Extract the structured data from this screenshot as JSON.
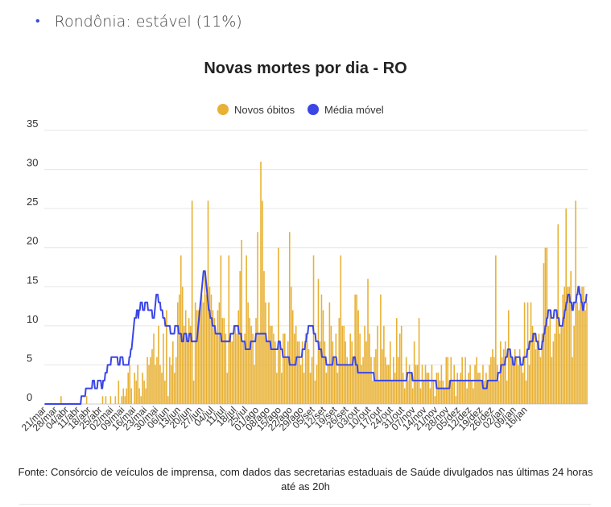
{
  "bullet": {
    "text": "Rondônia: estável (11%)"
  },
  "chart_data": {
    "type": "bar",
    "title": "Novas mortes por dia - RO",
    "legend": {
      "placement": "top-center",
      "items": [
        {
          "name": "Novos óbitos",
          "color": "#e8b134"
        },
        {
          "name": "Média móvel",
          "color": "#3a46e6"
        }
      ]
    },
    "ylim": [
      0,
      35
    ],
    "yticks": [
      0,
      5,
      10,
      15,
      20,
      25,
      30,
      35
    ],
    "xlabel": "",
    "ylabel": "",
    "x_tick_labels": [
      "21/mar",
      "28/mar",
      "04/abr",
      "11/abr",
      "18/abr",
      "25/abr",
      "02/mai",
      "09/mai",
      "16/mai",
      "23/mai",
      "30/mai",
      "06/jun",
      "13/jun",
      "20/jun",
      "27/jun",
      "04/jul",
      "11/jul",
      "18/jul",
      "25/jul",
      "01/ago",
      "08/ago",
      "15/ago",
      "22/ago",
      "29/ago",
      "05/set",
      "12/set",
      "19/set",
      "26/set",
      "03/out",
      "10/out",
      "17/out",
      "24/out",
      "31/out",
      "07/nov",
      "14/nov",
      "21/nov",
      "28/nov",
      "05/dez",
      "12/dez",
      "19/dez",
      "26/dez",
      "02/jan",
      "09/jan",
      "16/jan"
    ],
    "series": [
      {
        "name": "Novos óbitos",
        "type": "bar",
        "values": [
          0,
          0,
          0,
          0,
          0,
          0,
          0,
          0,
          0,
          0,
          1,
          0,
          0,
          0,
          0,
          0,
          0,
          0,
          0,
          0,
          0,
          0,
          0,
          0,
          0,
          0,
          1,
          0,
          0,
          0,
          0,
          0,
          0,
          0,
          0,
          0,
          1,
          0,
          1,
          0,
          0,
          1,
          0,
          0,
          1,
          0,
          3,
          0,
          1,
          2,
          1,
          2,
          4,
          5,
          2,
          0,
          4,
          3,
          5,
          2,
          1,
          4,
          3,
          2,
          6,
          5,
          6,
          7,
          9,
          5,
          6,
          10,
          5,
          4,
          9,
          3,
          12,
          1,
          6,
          5,
          8,
          4,
          6,
          13,
          14,
          19,
          15,
          10,
          12,
          8,
          11,
          10,
          26,
          3,
          13,
          12,
          12,
          13,
          14,
          13,
          17,
          14,
          26,
          15,
          14,
          12,
          11,
          9,
          12,
          13,
          19,
          11,
          11,
          9,
          4,
          19,
          9,
          8,
          9,
          10,
          9,
          12,
          17,
          21,
          8,
          9,
          19,
          13,
          11,
          10,
          9,
          5,
          11,
          22,
          9,
          31,
          26,
          17,
          13,
          8,
          13,
          10,
          10,
          9,
          8,
          4,
          20,
          8,
          4,
          9,
          9,
          6,
          8,
          22,
          15,
          12,
          9,
          10,
          8,
          8,
          5,
          8,
          4,
          9,
          8,
          7,
          4,
          6,
          19,
          3,
          5,
          16,
          8,
          14,
          12,
          8,
          4,
          5,
          13,
          10,
          8,
          6,
          9,
          4,
          11,
          19,
          10,
          10,
          8,
          6,
          5,
          9,
          8,
          5,
          14,
          14,
          12,
          9,
          5,
          6,
          10,
          8,
          16,
          9,
          6,
          3,
          6,
          7,
          10,
          3,
          14,
          7,
          10,
          6,
          5,
          5,
          8,
          3,
          6,
          4,
          11,
          6,
          9,
          10,
          4,
          2,
          6,
          3,
          5,
          4,
          2,
          8,
          5,
          5,
          11,
          2,
          5,
          3,
          5,
          4,
          4,
          2,
          5,
          3,
          1,
          4,
          4,
          3,
          5,
          3,
          2,
          6,
          6,
          3,
          6,
          3,
          5,
          1,
          4,
          3,
          4,
          6,
          3,
          6,
          2,
          4,
          5,
          3,
          2,
          5,
          6,
          4,
          4,
          3,
          5,
          3,
          4,
          3,
          5,
          6,
          7,
          6,
          19,
          5,
          3,
          8,
          6,
          7,
          8,
          3,
          12,
          7,
          6,
          5,
          7,
          6,
          5,
          7,
          5,
          4,
          13,
          3,
          13,
          5,
          13,
          10,
          9,
          7,
          8,
          9,
          6,
          9,
          18,
          20,
          20,
          10,
          12,
          6,
          8,
          9,
          12,
          23,
          9,
          10,
          14,
          15,
          25,
          15,
          15,
          17,
          6,
          10,
          26,
          13,
          12,
          13,
          15,
          15,
          12,
          13
        ]
      },
      {
        "name": "Média móvel",
        "type": "line",
        "values": [
          0,
          0,
          0,
          0,
          0,
          0,
          0,
          0,
          0,
          0,
          0,
          0,
          0,
          0,
          0,
          0,
          0,
          0,
          0,
          0,
          0,
          0,
          0,
          0,
          0,
          0,
          0,
          0,
          0,
          0,
          0,
          0,
          0,
          0,
          0,
          0,
          0,
          0,
          0,
          0,
          0,
          0,
          0,
          0,
          0,
          0,
          0,
          0,
          0,
          1,
          1,
          1,
          1,
          1,
          1,
          2,
          2,
          2,
          2,
          2,
          2,
          2,
          2,
          2,
          3,
          3,
          3,
          2,
          2,
          2,
          2,
          3,
          3,
          3,
          3,
          3,
          2,
          2,
          3,
          3,
          3,
          4,
          4,
          4,
          5,
          5,
          5,
          5,
          5,
          6,
          6,
          6,
          6,
          6,
          6,
          6,
          6,
          6,
          5,
          5,
          5,
          6,
          6,
          6,
          6,
          5,
          5,
          5,
          5,
          5,
          5,
          5,
          5,
          6,
          6,
          7,
          7,
          8,
          9,
          10,
          11,
          11,
          11,
          12,
          12,
          11,
          12,
          12,
          13,
          13,
          13,
          12,
          12,
          12,
          13,
          13,
          13,
          13,
          12,
          12,
          12,
          12,
          12,
          12,
          11,
          11,
          11,
          12,
          13,
          14,
          14,
          14,
          13,
          13,
          13,
          12,
          12,
          12,
          11,
          11,
          11,
          10,
          10,
          10,
          10,
          10,
          10,
          10,
          9,
          9,
          9,
          9,
          9,
          9,
          10,
          10,
          10,
          10,
          10,
          9,
          9,
          9,
          9,
          8,
          8,
          8,
          9,
          9,
          9,
          9,
          8,
          8,
          8,
          9,
          9,
          9,
          8,
          8,
          8,
          8,
          8,
          8,
          8,
          8,
          9,
          10,
          11,
          12,
          13,
          14,
          15,
          16,
          17,
          17,
          17,
          16,
          15,
          14,
          13,
          12,
          12,
          11,
          11,
          11,
          10,
          10,
          10,
          10,
          9,
          9,
          9,
          9,
          9,
          9,
          9,
          9,
          8,
          8,
          8,
          8,
          8,
          8,
          8,
          8,
          8,
          8,
          8,
          8,
          9,
          9,
          9,
          9,
          9,
          10,
          10,
          10,
          10,
          10,
          10,
          9,
          9,
          9,
          9,
          8,
          8,
          8,
          8,
          8,
          7,
          7,
          7,
          7,
          7,
          7,
          7,
          8,
          8,
          8,
          8,
          8,
          8,
          8,
          9,
          9,
          9,
          9,
          9,
          9,
          9,
          9,
          9,
          9,
          9,
          9,
          9,
          9,
          8,
          8,
          8,
          8,
          8,
          8,
          7,
          7,
          7,
          7,
          7,
          7,
          7,
          7,
          7,
          7,
          8,
          8,
          8,
          7,
          7,
          7,
          6,
          6,
          6,
          6,
          6,
          6,
          6,
          6,
          6,
          5,
          5,
          5,
          5,
          5,
          5,
          5,
          5,
          5,
          6,
          6,
          6,
          6,
          6,
          6,
          6,
          6,
          7,
          7,
          7,
          7,
          8,
          8,
          9,
          9,
          10,
          10,
          10,
          10,
          10,
          10,
          10,
          9,
          9,
          9,
          8,
          8,
          8,
          8,
          7,
          7,
          7,
          7,
          6,
          6,
          6,
          6,
          6,
          6,
          5,
          5,
          5,
          5,
          5,
          5,
          5,
          5,
          5,
          6,
          6,
          6,
          6,
          6,
          5,
          5,
          5,
          5,
          5,
          5,
          5,
          5,
          5,
          5,
          5,
          5,
          5,
          5,
          5,
          5,
          5,
          5,
          5,
          5,
          5,
          5,
          6,
          6,
          6,
          5,
          5,
          5,
          4,
          4,
          4,
          4,
          4,
          4,
          4,
          4,
          4,
          4,
          4,
          4,
          4,
          4,
          4,
          4,
          4,
          4,
          4,
          4,
          4,
          4,
          3,
          3,
          3,
          3,
          3,
          3,
          3,
          3,
          3,
          3,
          3,
          3,
          3,
          3,
          3,
          3,
          3,
          3,
          3,
          3,
          3,
          3,
          3,
          3,
          3,
          3,
          3,
          3,
          3,
          3,
          3,
          3,
          3,
          3,
          3,
          3,
          3,
          3,
          3,
          3,
          3,
          3,
          3,
          3,
          4,
          4,
          4,
          4,
          4,
          4,
          4,
          3,
          3,
          3,
          3,
          3,
          3,
          3,
          3,
          3,
          3,
          3,
          3,
          3,
          3,
          3,
          3,
          3,
          3,
          3,
          3,
          3,
          3,
          3,
          3,
          3,
          3,
          3,
          3,
          3,
          3,
          3,
          3,
          2,
          2,
          2,
          2,
          2,
          2,
          2,
          2,
          2,
          2,
          2,
          2,
          2,
          2,
          2,
          2,
          2,
          2,
          3,
          3,
          3,
          3,
          3,
          3,
          3,
          3,
          3,
          3,
          3,
          3,
          3,
          3,
          3,
          3,
          3,
          3,
          3,
          3,
          3,
          3,
          3,
          3,
          3,
          3,
          3,
          3,
          3,
          3,
          3,
          3,
          3,
          3,
          3,
          3,
          3,
          3,
          3,
          3,
          3,
          3,
          3,
          3,
          2,
          2,
          2,
          2,
          2,
          2,
          3,
          3,
          3,
          3,
          3,
          3,
          3,
          3,
          3,
          3,
          3,
          3,
          3,
          3,
          4,
          4,
          4,
          4,
          5,
          5,
          5,
          5,
          5,
          5,
          6,
          6,
          6,
          7,
          7,
          7,
          7,
          6,
          6,
          6,
          5,
          5,
          5,
          6,
          6,
          6,
          6,
          6,
          6,
          6,
          5,
          5,
          5,
          5,
          6,
          6,
          6,
          6,
          6,
          7,
          7,
          7,
          8,
          8,
          8,
          8,
          8,
          9,
          9,
          9,
          9,
          8,
          8,
          8,
          7,
          7,
          7,
          7,
          7,
          8,
          8,
          9,
          9,
          10,
          10,
          11,
          11,
          12,
          12,
          12,
          12,
          11,
          11,
          11,
          11,
          12,
          12,
          12,
          12,
          11,
          11,
          11,
          10,
          10,
          10,
          10,
          10,
          11,
          11,
          12,
          12,
          13,
          13,
          14,
          14,
          14,
          13,
          13,
          13,
          12,
          12,
          13,
          13,
          13,
          13,
          14,
          14,
          15,
          15,
          14,
          14,
          13,
          13,
          12,
          12,
          13,
          13,
          13,
          14,
          14
        ]
      }
    ]
  },
  "footer": {
    "line1": "Fonte: Consórcio de veículos de imprensa, com dados das secretarias estaduais de Saúde divulgados nas últimas 24 horas",
    "line2": "até as 20h"
  }
}
